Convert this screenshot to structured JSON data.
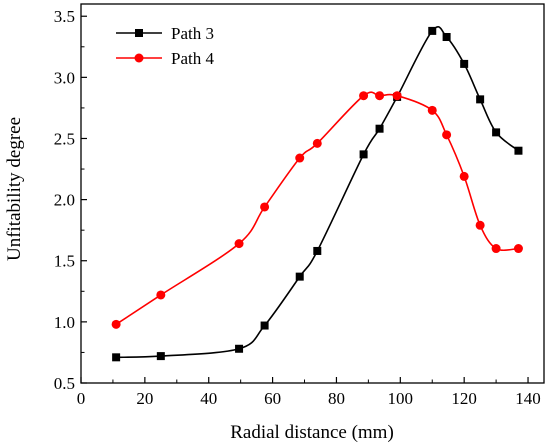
{
  "chart_data": {
    "type": "line",
    "title": "",
    "xlabel": "Radial distance (mm)",
    "ylabel": "Unfitability degree",
    "xlim": [
      0,
      145
    ],
    "ylim": [
      0.5,
      3.6
    ],
    "xticks": [
      0,
      20,
      40,
      60,
      80,
      100,
      120,
      140
    ],
    "yticks": [
      0.5,
      1.0,
      1.5,
      2.0,
      2.5,
      3.0,
      3.5
    ],
    "xtick_labels": [
      "0",
      "20",
      "40",
      "60",
      "80",
      "100",
      "120",
      "140"
    ],
    "ytick_labels": [
      "0.5",
      "1.0",
      "1.5",
      "2.0",
      "2.5",
      "3.0",
      "3.5"
    ],
    "grid": false,
    "legend_position": "top-left",
    "series": [
      {
        "name": "Path 3",
        "color": "#000000",
        "marker": "square",
        "x": [
          11,
          25,
          49.5,
          57.5,
          68.5,
          74,
          88.5,
          93.5,
          99,
          110,
          114.5,
          120,
          125,
          130,
          137
        ],
        "y": [
          0.71,
          0.72,
          0.78,
          0.97,
          1.37,
          1.58,
          2.37,
          2.58,
          2.84,
          3.38,
          3.33,
          3.11,
          2.82,
          2.55,
          2.4
        ]
      },
      {
        "name": "Path 4",
        "color": "#ff0000",
        "marker": "circle",
        "x": [
          11,
          25,
          49.5,
          57.5,
          68.5,
          74,
          88.5,
          93.5,
          99,
          110,
          114.5,
          120,
          125,
          130,
          137
        ],
        "y": [
          0.98,
          1.22,
          1.64,
          1.94,
          2.34,
          2.46,
          2.85,
          2.85,
          2.85,
          2.73,
          2.53,
          2.19,
          1.79,
          1.6,
          1.6
        ]
      }
    ]
  }
}
